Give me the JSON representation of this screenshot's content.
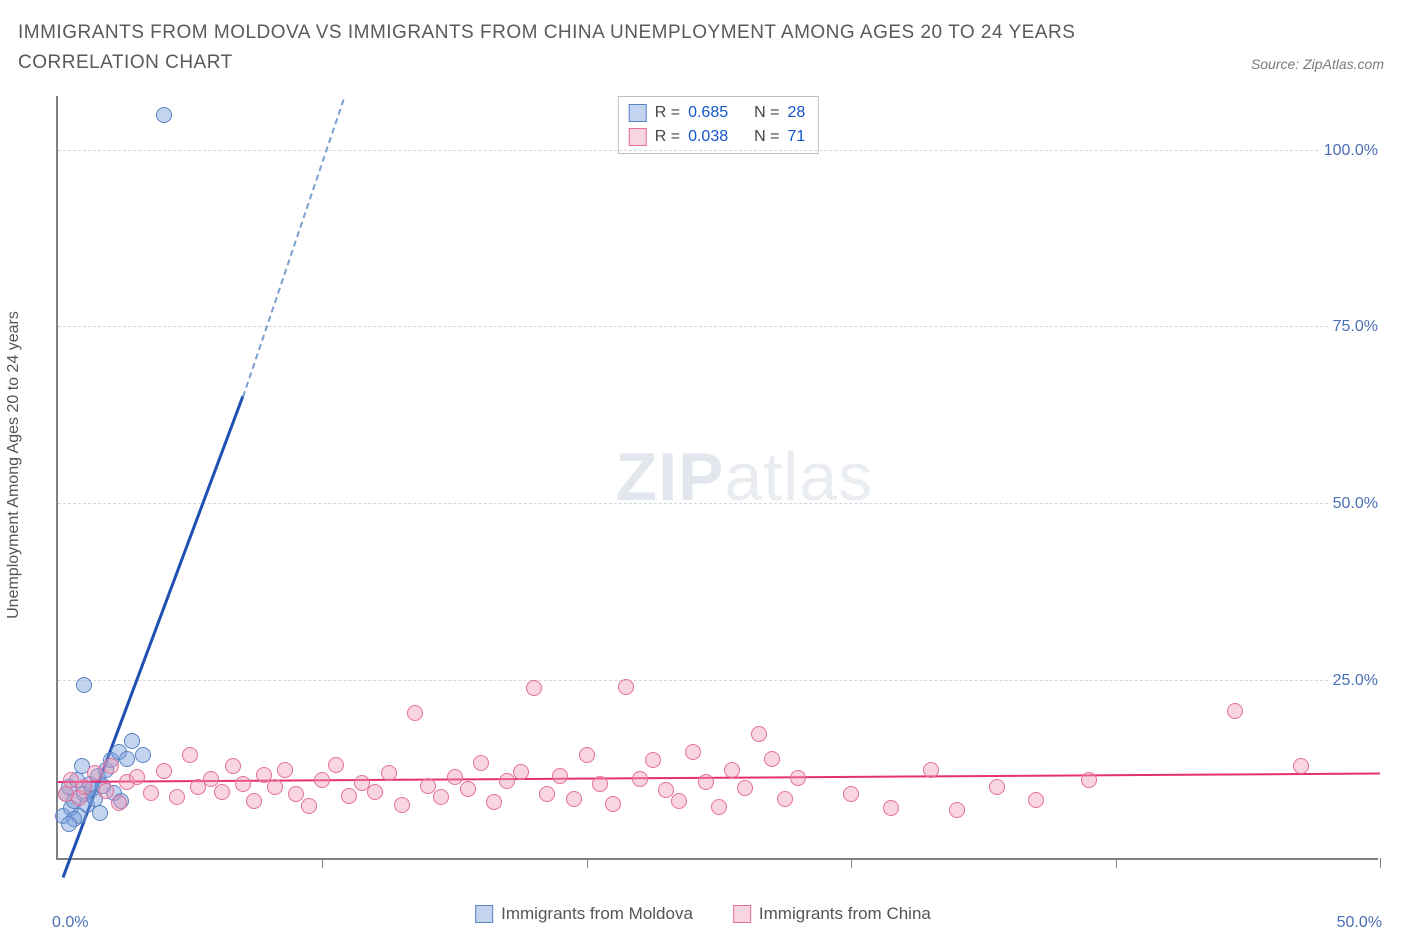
{
  "title": "IMMIGRANTS FROM MOLDOVA VS IMMIGRANTS FROM CHINA UNEMPLOYMENT AMONG AGES 20 TO 24 YEARS CORRELATION CHART",
  "source_label": "Source: ZipAtlas.com",
  "y_axis_title": "Unemployment Among Ages 20 to 24 years",
  "watermark_bold": "ZIP",
  "watermark_light": "atlas",
  "chart": {
    "type": "scatter",
    "xlim": [
      0,
      50
    ],
    "ylim": [
      0,
      108
    ],
    "x_ticks": [
      10,
      20,
      30,
      40,
      50
    ],
    "y_ticks": [
      25,
      50,
      75,
      100
    ],
    "y_tick_labels": [
      "25.0%",
      "50.0%",
      "75.0%",
      "100.0%"
    ],
    "x_left_label": "0.0%",
    "x_right_label": "50.0%",
    "axis_color": "#808080",
    "grid_color": "#d7d7d7",
    "label_color": "#4b6fb5",
    "label_fontsize": 16,
    "background_color": "#ffffff",
    "marker_radius": 8
  },
  "series": [
    {
      "name": "Immigrants from Moldova",
      "color_fill": "rgba(120,160,220,0.45)",
      "color_stroke": "#5b84c4",
      "trend_color": "#1f4fb0",
      "trend_dash_color": "#7aa0d0",
      "R": "0.685",
      "N": "28",
      "trend": {
        "x1": 0.2,
        "y1": -3,
        "x2": 7,
        "y2": 65,
        "x2_dash": 10.8,
        "y2_dash": 107
      },
      "points": [
        [
          0.2,
          6
        ],
        [
          0.3,
          9
        ],
        [
          0.4,
          10
        ],
        [
          0.5,
          7
        ],
        [
          0.6,
          8
        ],
        [
          0.7,
          11
        ],
        [
          0.8,
          6
        ],
        [
          0.9,
          13
        ],
        [
          1.0,
          9
        ],
        [
          1.1,
          7.5
        ],
        [
          1.2,
          10.5
        ],
        [
          1.4,
          8.3
        ],
        [
          1.5,
          11.6
        ],
        [
          1.6,
          6.4
        ],
        [
          1.8,
          12.5
        ],
        [
          2.0,
          13.8
        ],
        [
          2.1,
          9.2
        ],
        [
          2.3,
          15.0
        ],
        [
          2.4,
          8.0
        ],
        [
          2.6,
          14.0
        ],
        [
          2.8,
          16.5
        ],
        [
          1.0,
          24.5
        ],
        [
          3.2,
          14.5
        ],
        [
          0.6,
          5.5
        ],
        [
          0.4,
          4.8
        ],
        [
          1.3,
          9.8
        ],
        [
          1.7,
          10.2
        ],
        [
          4.0,
          105
        ]
      ]
    },
    {
      "name": "Immigrants from China",
      "color_fill": "rgba(240,150,180,0.40)",
      "color_stroke": "#e36f9a",
      "trend_color": "#e63072",
      "trend_dash_color": "#f0a0c0",
      "R": "0.038",
      "N": "71",
      "trend": {
        "x1": 0,
        "y1": 10.6,
        "x2": 50,
        "y2": 11.8,
        "x2_dash": 50,
        "y2_dash": 11.8
      },
      "points": [
        [
          0.3,
          9
        ],
        [
          0.5,
          11
        ],
        [
          0.8,
          8.5
        ],
        [
          1.0,
          10
        ],
        [
          1.4,
          12
        ],
        [
          1.8,
          9.5
        ],
        [
          2.0,
          13
        ],
        [
          2.3,
          7.8
        ],
        [
          2.6,
          10.8
        ],
        [
          3.0,
          11.5
        ],
        [
          3.5,
          9.2
        ],
        [
          4.0,
          12.3
        ],
        [
          4.5,
          8.6
        ],
        [
          5.0,
          14.5
        ],
        [
          5.3,
          10.1
        ],
        [
          5.8,
          11.2
        ],
        [
          6.2,
          9.4
        ],
        [
          6.6,
          13.0
        ],
        [
          7.0,
          10.5
        ],
        [
          7.4,
          8.0
        ],
        [
          7.8,
          11.8
        ],
        [
          8.2,
          10.0
        ],
        [
          8.6,
          12.5
        ],
        [
          9.0,
          9.0
        ],
        [
          9.5,
          7.4
        ],
        [
          10.0,
          11.0
        ],
        [
          10.5,
          13.2
        ],
        [
          11.0,
          8.8
        ],
        [
          11.5,
          10.6
        ],
        [
          12.0,
          9.3
        ],
        [
          12.5,
          12.0
        ],
        [
          13.0,
          7.5
        ],
        [
          13.5,
          20.5
        ],
        [
          14.0,
          10.2
        ],
        [
          14.5,
          8.6
        ],
        [
          15.0,
          11.4
        ],
        [
          15.5,
          9.8
        ],
        [
          16.0,
          13.5
        ],
        [
          16.5,
          7.9
        ],
        [
          17.0,
          10.9
        ],
        [
          17.5,
          12.2
        ],
        [
          18.0,
          24.0
        ],
        [
          18.5,
          9.1
        ],
        [
          19.0,
          11.6
        ],
        [
          19.5,
          8.3
        ],
        [
          20.0,
          14.5
        ],
        [
          20.5,
          10.4
        ],
        [
          21.0,
          7.6
        ],
        [
          21.5,
          24.2
        ],
        [
          22.0,
          11.1
        ],
        [
          22.5,
          13.8
        ],
        [
          23.0,
          9.6
        ],
        [
          23.5,
          8.0
        ],
        [
          24.0,
          15.0
        ],
        [
          24.5,
          10.7
        ],
        [
          25.0,
          7.2
        ],
        [
          25.5,
          12.4
        ],
        [
          26.0,
          9.9
        ],
        [
          26.5,
          17.5
        ],
        [
          27.0,
          14.0
        ],
        [
          27.5,
          8.4
        ],
        [
          28.0,
          11.3
        ],
        [
          30.0,
          9.0
        ],
        [
          31.5,
          7.0
        ],
        [
          33.0,
          12.5
        ],
        [
          34.0,
          6.8
        ],
        [
          35.5,
          10.0
        ],
        [
          37.0,
          8.2
        ],
        [
          39.0,
          11.0
        ],
        [
          44.5,
          20.8
        ],
        [
          47.0,
          13.0
        ]
      ]
    }
  ],
  "legend": {
    "R_label": "R =",
    "N_label": "N ="
  },
  "bottom_legend": {
    "items": [
      "Immigrants from Moldova",
      "Immigrants from China"
    ]
  }
}
